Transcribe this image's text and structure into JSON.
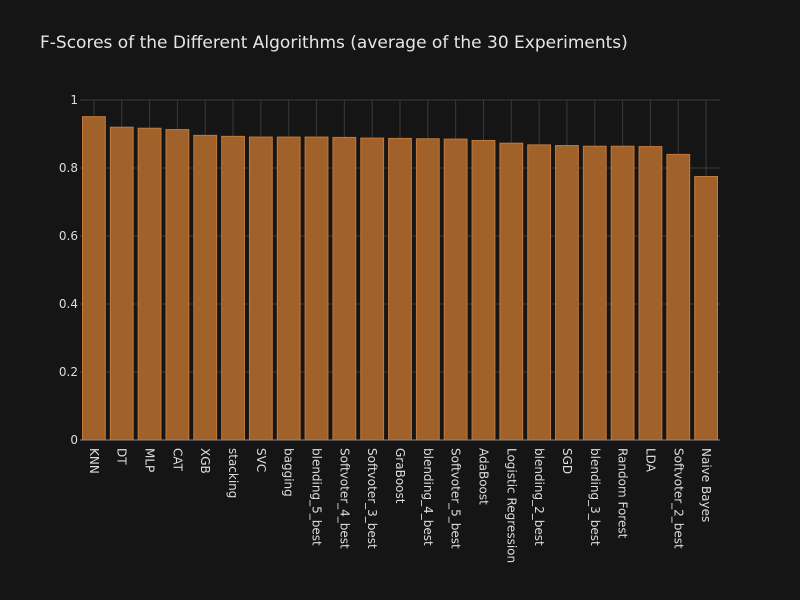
{
  "chart_data": {
    "type": "bar",
    "title": "F-Scores of the Different Algorithms (average of the 30 Experiments)",
    "xlabel": "",
    "ylabel": "",
    "ylim": [
      0,
      1
    ],
    "yticks": [
      0,
      0.2,
      0.4,
      0.6,
      0.8,
      1
    ],
    "ytick_labels": [
      "0",
      "0.2",
      "0.4",
      "0.6",
      "0.8",
      "1"
    ],
    "grid": true,
    "bar_color": "#a0622a",
    "bar_edge_color": "#c27a3a",
    "background_color": "#151515",
    "categories": [
      "KNN",
      "DT",
      "MLP",
      "CAT",
      "XGB",
      "stacking",
      "SVC",
      "bagging",
      "blending_5_best",
      "Softvoter_4_best",
      "Softvoter_3_best",
      "GraBoost",
      "blending_4_best",
      "Softvoter_5_best",
      "AdaBoost",
      "Logistic Regression",
      "blending_2_best",
      "SGD",
      "blending_3_best",
      "Random Forest",
      "LDA",
      "Softvoter_2_best",
      "Naive Bayes"
    ],
    "values": [
      0.951,
      0.92,
      0.917,
      0.913,
      0.896,
      0.893,
      0.891,
      0.891,
      0.891,
      0.89,
      0.888,
      0.887,
      0.886,
      0.885,
      0.881,
      0.873,
      0.868,
      0.866,
      0.864,
      0.864,
      0.863,
      0.84,
      0.775
    ]
  }
}
